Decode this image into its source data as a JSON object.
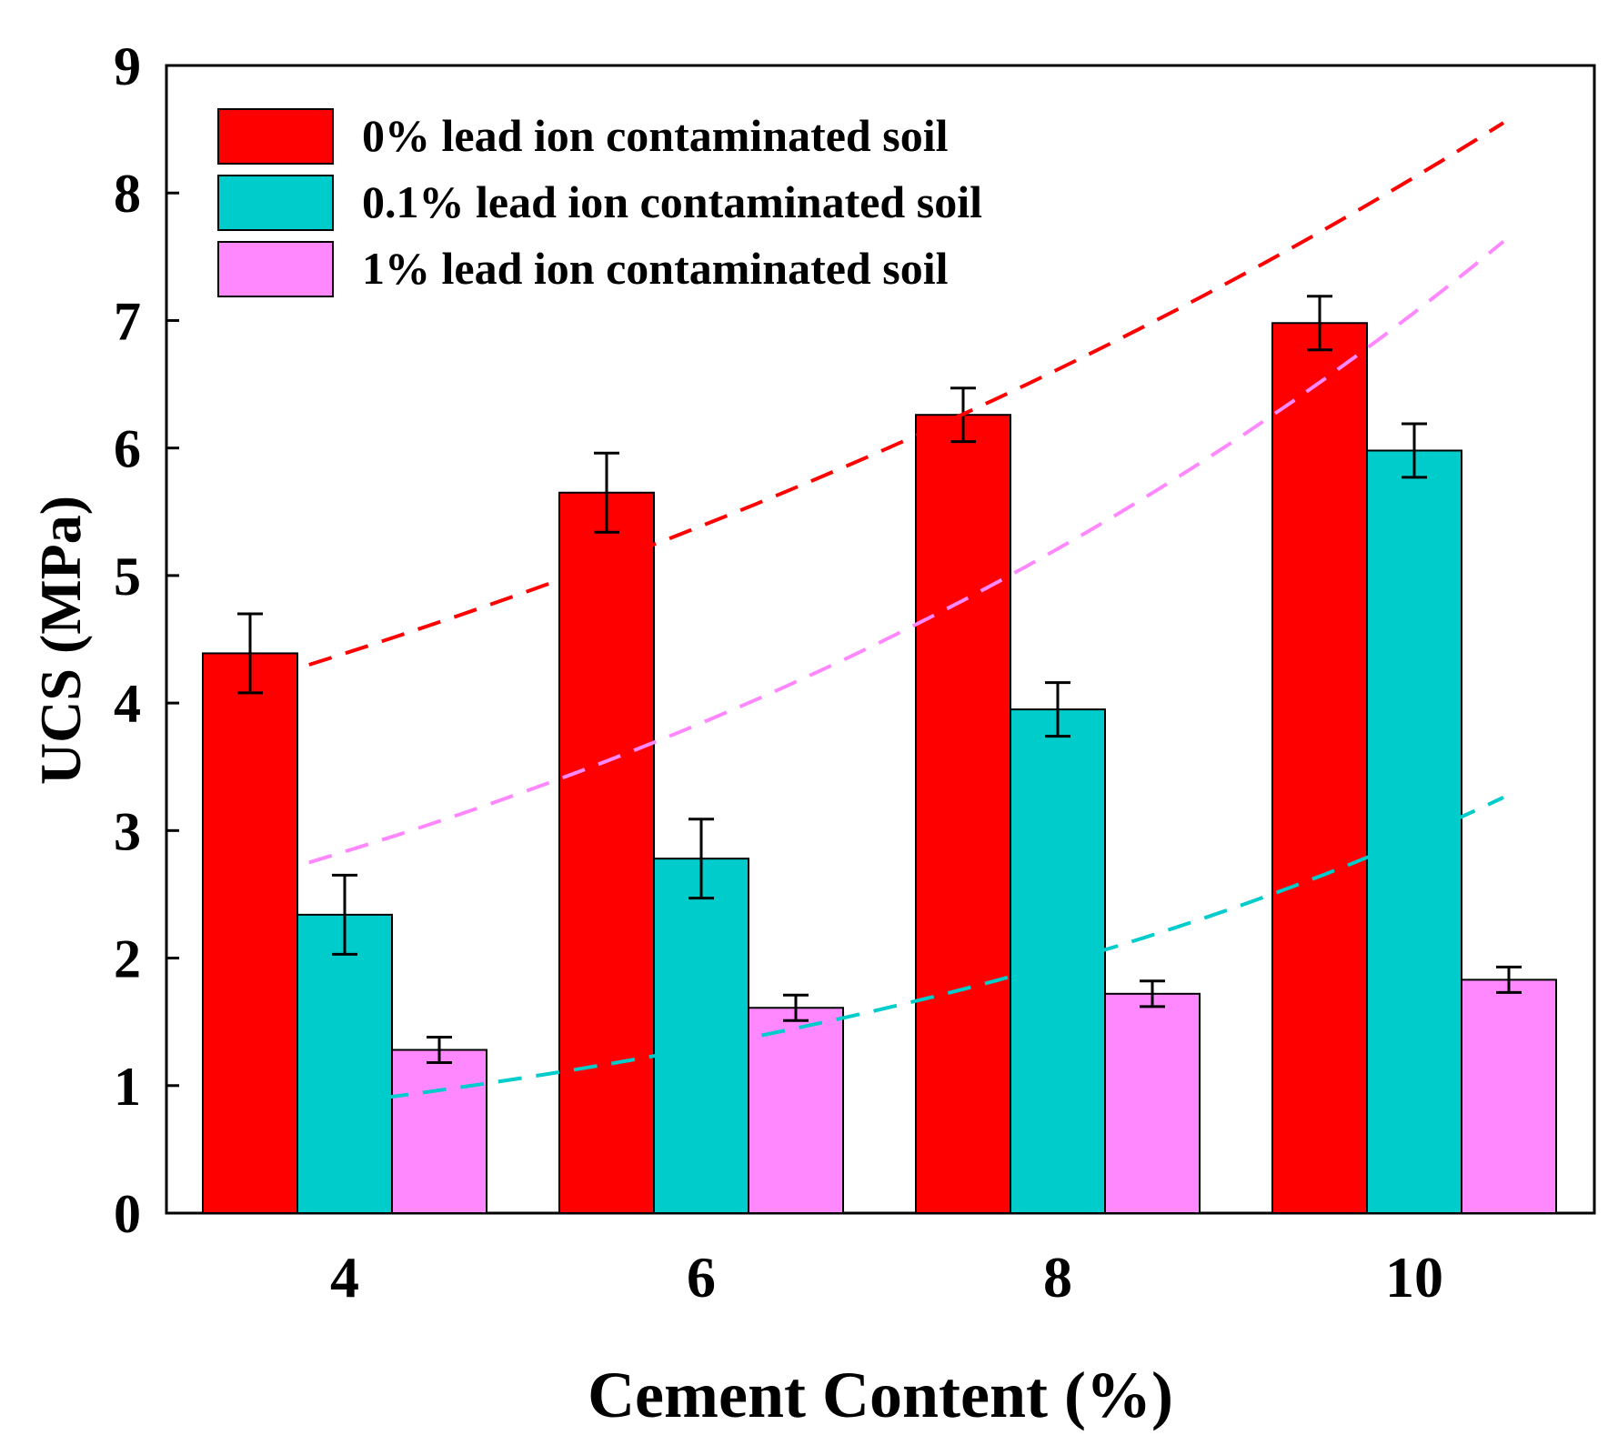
{
  "chart_data": {
    "type": "bar",
    "xlabel": "Cement Content (%)",
    "ylabel": "UCS (MPa)",
    "ylim": [
      0,
      9
    ],
    "yticks": [
      "0",
      "1",
      "2",
      "3",
      "4",
      "5",
      "6",
      "7",
      "8",
      "9"
    ],
    "categories": [
      "4",
      "6",
      "8",
      "10"
    ],
    "series": [
      {
        "name": "0% lead ion contaminated soil",
        "color": "#ff0000",
        "values": [
          4.39,
          5.65,
          6.26,
          6.98
        ],
        "errors": [
          0.31,
          0.31,
          0.21,
          0.21
        ],
        "trend": {
          "x": [
            3.8,
            10.5
          ],
          "y": [
            4.3,
            8.55
          ]
        }
      },
      {
        "name": "0.1% lead ion contaminated soil",
        "color": "#00cccc",
        "values": [
          2.34,
          2.78,
          3.95,
          5.98
        ],
        "errors": [
          0.31,
          0.31,
          0.21,
          0.21
        ],
        "trend": {
          "x": [
            3.8,
            10.5
          ],
          "y": [
            0.83,
            3.26
          ]
        }
      },
      {
        "name": "1% lead ion contaminated soil",
        "color": "#ff88ff",
        "values": [
          1.28,
          1.61,
          1.72,
          1.83
        ],
        "errors": [
          0.1,
          0.1,
          0.1,
          0.1
        ],
        "trend": {
          "x": [
            3.8,
            10.5
          ],
          "y": [
            2.75,
            7.62
          ]
        }
      }
    ]
  }
}
